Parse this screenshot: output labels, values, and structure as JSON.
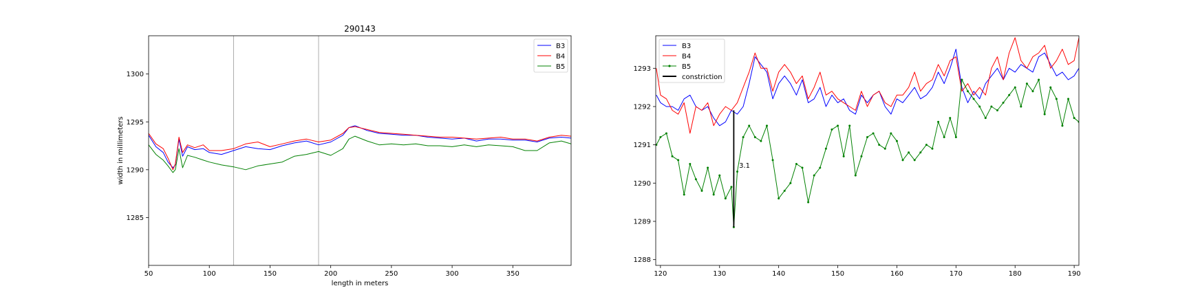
{
  "chart_data": [
    {
      "type": "line",
      "title": "290143",
      "xlabel": "length in meters",
      "ylabel": "width in millimeters",
      "xlim": [
        50,
        398
      ],
      "ylim": [
        1280,
        1304
      ],
      "xticks": [
        50,
        100,
        150,
        200,
        250,
        300,
        350
      ],
      "yticks": [
        1285,
        1290,
        1295,
        1300
      ],
      "grid": false,
      "legend_position": "top-right",
      "vertical_lines": [
        120,
        190
      ],
      "series": [
        {
          "name": "B3",
          "color": "#0000ff",
          "x": [
            50,
            56,
            62,
            66,
            70,
            72,
            75,
            78,
            82,
            88,
            95,
            100,
            110,
            120,
            130,
            140,
            150,
            160,
            170,
            180,
            190,
            200,
            210,
            215,
            220,
            230,
            240,
            250,
            260,
            270,
            280,
            290,
            300,
            310,
            320,
            330,
            340,
            350,
            360,
            370,
            380,
            390,
            398
          ],
          "y": [
            1293.6,
            1292.4,
            1291.8,
            1290.8,
            1290.2,
            1290.5,
            1293.2,
            1291.4,
            1292.4,
            1292.1,
            1292.2,
            1291.8,
            1291.6,
            1292.0,
            1292.4,
            1292.2,
            1292.1,
            1292.5,
            1292.8,
            1293.0,
            1292.6,
            1292.9,
            1293.6,
            1294.4,
            1294.6,
            1294.1,
            1293.8,
            1293.7,
            1293.6,
            1293.6,
            1293.4,
            1293.3,
            1293.2,
            1293.3,
            1293.0,
            1293.2,
            1293.2,
            1293.1,
            1293.1,
            1292.9,
            1293.3,
            1293.4,
            1293.3
          ]
        },
        {
          "name": "B4",
          "color": "#ff0000",
          "x": [
            50,
            56,
            62,
            66,
            70,
            72,
            75,
            78,
            82,
            88,
            95,
            100,
            110,
            120,
            130,
            140,
            150,
            160,
            170,
            180,
            190,
            200,
            210,
            215,
            220,
            230,
            240,
            250,
            260,
            270,
            280,
            290,
            300,
            310,
            320,
            330,
            340,
            350,
            360,
            370,
            380,
            390,
            398
          ],
          "y": [
            1293.8,
            1292.7,
            1292.2,
            1291.2,
            1290.0,
            1290.6,
            1293.4,
            1291.8,
            1292.6,
            1292.3,
            1292.6,
            1292.0,
            1292.0,
            1292.2,
            1292.7,
            1292.9,
            1292.4,
            1292.7,
            1293.0,
            1293.2,
            1292.9,
            1293.1,
            1293.8,
            1294.4,
            1294.5,
            1294.2,
            1293.9,
            1293.8,
            1293.7,
            1293.6,
            1293.5,
            1293.4,
            1293.4,
            1293.3,
            1293.2,
            1293.3,
            1293.4,
            1293.2,
            1293.2,
            1293.0,
            1293.4,
            1293.6,
            1293.5
          ]
        },
        {
          "name": "B5",
          "color": "#008000",
          "x": [
            50,
            56,
            62,
            66,
            70,
            72,
            75,
            78,
            82,
            88,
            95,
            100,
            110,
            120,
            130,
            140,
            150,
            160,
            170,
            180,
            190,
            200,
            210,
            215,
            220,
            230,
            240,
            250,
            260,
            270,
            280,
            290,
            300,
            310,
            320,
            330,
            340,
            350,
            360,
            370,
            380,
            390,
            398
          ],
          "y": [
            1292.6,
            1291.6,
            1291.0,
            1290.4,
            1289.7,
            1290.0,
            1292.2,
            1290.2,
            1291.5,
            1291.3,
            1291.0,
            1290.8,
            1290.5,
            1290.3,
            1290.0,
            1290.4,
            1290.6,
            1290.8,
            1291.4,
            1291.6,
            1291.9,
            1291.5,
            1292.2,
            1293.2,
            1293.5,
            1293.0,
            1292.6,
            1292.7,
            1292.6,
            1292.7,
            1292.5,
            1292.5,
            1292.4,
            1292.6,
            1292.4,
            1292.6,
            1292.5,
            1292.4,
            1292.0,
            1292.0,
            1292.8,
            1293.0,
            1292.7
          ]
        }
      ]
    },
    {
      "type": "line",
      "title": "",
      "xlabel": "",
      "ylabel": "",
      "xlim": [
        119.2,
        190.8
      ],
      "ylim": [
        1287.85,
        1293.85
      ],
      "xticks": [
        120,
        130,
        140,
        150,
        160,
        170,
        180,
        190
      ],
      "yticks": [
        1288,
        1289,
        1290,
        1291,
        1292,
        1293
      ],
      "grid": false,
      "legend_position": "top-left",
      "series": [
        {
          "name": "B3",
          "color": "#0000ff",
          "x": [
            119.3,
            120,
            121,
            122,
            123,
            124,
            125,
            126,
            127,
            128,
            129,
            130,
            131,
            132,
            133,
            134,
            135,
            136,
            137,
            138,
            139,
            140,
            141,
            142,
            143,
            144,
            145,
            146,
            147,
            148,
            149,
            150,
            151,
            152,
            153,
            154,
            155,
            156,
            157,
            158,
            159,
            160,
            161,
            162,
            163,
            164,
            165,
            166,
            167,
            168,
            169,
            170,
            171,
            172,
            173,
            174,
            175,
            176,
            177,
            178,
            179,
            180,
            181,
            182,
            183,
            184,
            185,
            186,
            187,
            188,
            189,
            190,
            190.8
          ],
          "y": [
            1292.3,
            1292.1,
            1292.0,
            1292.0,
            1291.9,
            1292.2,
            1292.3,
            1292.0,
            1291.9,
            1292.0,
            1291.7,
            1291.5,
            1291.6,
            1291.9,
            1291.8,
            1292.0,
            1292.6,
            1293.3,
            1293.1,
            1292.9,
            1292.2,
            1292.6,
            1292.8,
            1292.6,
            1292.3,
            1292.7,
            1292.1,
            1292.2,
            1292.5,
            1292.0,
            1292.3,
            1292.1,
            1292.2,
            1291.9,
            1291.8,
            1292.3,
            1292.1,
            1292.3,
            1292.4,
            1292.0,
            1291.8,
            1292.2,
            1292.1,
            1292.3,
            1292.5,
            1292.2,
            1292.3,
            1292.5,
            1292.9,
            1292.6,
            1293.0,
            1293.5,
            1292.5,
            1292.1,
            1292.4,
            1292.2,
            1292.6,
            1292.8,
            1293.0,
            1292.7,
            1293.0,
            1292.9,
            1293.1,
            1293.0,
            1292.9,
            1293.3,
            1293.4,
            1293.1,
            1292.8,
            1292.9,
            1292.7,
            1292.8,
            1293.0
          ]
        },
        {
          "name": "B4",
          "color": "#ff0000",
          "x": [
            119.3,
            120,
            121,
            122,
            123,
            124,
            125,
            126,
            127,
            128,
            129,
            130,
            131,
            132,
            133,
            134,
            135,
            136,
            137,
            138,
            139,
            140,
            141,
            142,
            143,
            144,
            145,
            146,
            147,
            148,
            149,
            150,
            151,
            152,
            153,
            154,
            155,
            156,
            157,
            158,
            159,
            160,
            161,
            162,
            163,
            164,
            165,
            166,
            167,
            168,
            169,
            170,
            171,
            172,
            173,
            174,
            175,
            176,
            177,
            178,
            179,
            180,
            181,
            182,
            183,
            184,
            185,
            186,
            187,
            188,
            189,
            190,
            190.8
          ],
          "y": [
            1293.0,
            1292.3,
            1292.2,
            1291.9,
            1291.8,
            1292.1,
            1291.3,
            1292.0,
            1291.9,
            1292.1,
            1291.5,
            1291.8,
            1292.0,
            1291.9,
            1292.1,
            1292.5,
            1292.9,
            1293.4,
            1293.0,
            1293.0,
            1292.4,
            1292.9,
            1293.1,
            1292.9,
            1292.6,
            1292.8,
            1292.2,
            1292.5,
            1292.9,
            1292.3,
            1292.4,
            1292.2,
            1292.1,
            1292.0,
            1291.9,
            1292.4,
            1292.0,
            1292.3,
            1292.4,
            1292.1,
            1292.0,
            1292.3,
            1292.3,
            1292.5,
            1292.9,
            1292.4,
            1292.6,
            1292.7,
            1293.1,
            1292.8,
            1293.2,
            1293.3,
            1292.4,
            1292.6,
            1292.3,
            1292.5,
            1292.3,
            1293.0,
            1293.3,
            1292.7,
            1293.4,
            1293.8,
            1293.2,
            1293.0,
            1293.3,
            1293.4,
            1293.6,
            1293.0,
            1293.2,
            1293.5,
            1293.1,
            1293.2,
            1293.8
          ]
        },
        {
          "name": "B5",
          "color": "#008000",
          "marker": "dot",
          "x": [
            119.3,
            120,
            121,
            122,
            123,
            124,
            125,
            126,
            127,
            128,
            129,
            130,
            131,
            132,
            132.4,
            133,
            134,
            135,
            136,
            137,
            138,
            139,
            140,
            141,
            142,
            143,
            144,
            145,
            146,
            147,
            148,
            149,
            150,
            151,
            152,
            153,
            154,
            155,
            156,
            157,
            158,
            159,
            160,
            161,
            162,
            163,
            164,
            165,
            166,
            167,
            168,
            169,
            170,
            171,
            172,
            173,
            174,
            175,
            176,
            177,
            178,
            179,
            180,
            181,
            182,
            183,
            184,
            185,
            186,
            187,
            188,
            189,
            190,
            190.8
          ],
          "y": [
            1291.0,
            1291.2,
            1291.3,
            1290.7,
            1290.6,
            1289.7,
            1290.5,
            1290.1,
            1289.8,
            1290.4,
            1289.7,
            1290.2,
            1289.6,
            1289.9,
            1288.85,
            1290.3,
            1291.2,
            1291.5,
            1291.2,
            1291.1,
            1291.5,
            1290.6,
            1289.6,
            1289.8,
            1290.0,
            1290.5,
            1290.4,
            1289.5,
            1290.2,
            1290.4,
            1290.9,
            1291.4,
            1291.5,
            1290.7,
            1291.5,
            1290.2,
            1290.7,
            1291.2,
            1291.3,
            1291.0,
            1290.9,
            1291.3,
            1291.1,
            1290.6,
            1290.8,
            1290.6,
            1290.8,
            1291.0,
            1290.9,
            1291.6,
            1291.2,
            1291.7,
            1291.2,
            1292.7,
            1292.4,
            1292.2,
            1292.0,
            1291.7,
            1292.0,
            1291.9,
            1292.1,
            1292.3,
            1292.5,
            1292.0,
            1292.6,
            1292.4,
            1292.7,
            1291.8,
            1292.5,
            1292.2,
            1291.5,
            1292.2,
            1291.7,
            1291.6
          ]
        },
        {
          "name": "constriction",
          "color": "#000000",
          "x": [
            132.4,
            132.4
          ],
          "y": [
            1291.9,
            1288.85
          ]
        }
      ],
      "annotations": [
        {
          "text": "3.1",
          "x": 133.3,
          "y": 1290.4
        }
      ]
    }
  ]
}
